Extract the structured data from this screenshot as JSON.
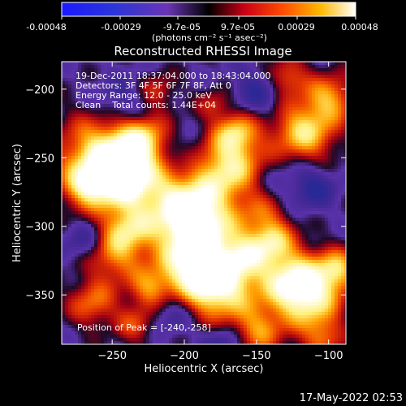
{
  "colorbar": {
    "tick_labels": [
      "-0.00048",
      "-0.00029",
      "-9.7e-05",
      "9.7e-05",
      "0.00029",
      "0.00048"
    ],
    "tick_values": [
      -0.00048,
      -0.00029,
      -9.7e-05,
      9.7e-05,
      0.00029,
      0.00048
    ],
    "range": [
      -0.00048,
      0.00048
    ],
    "units_label": "(photons cm⁻² s⁻¹ asec⁻²)"
  },
  "chart_data": {
    "type": "heatmap",
    "title": "Reconstructed RHESSI Image",
    "xlabel": "Heliocentric X (arcsec)",
    "ylabel": "Heliocentric Y (arcsec)",
    "xlim": [
      -285,
      -88
    ],
    "ylim": [
      -386,
      -180
    ],
    "x_ticks": [
      -250,
      -200,
      -150,
      -100
    ],
    "y_ticks": [
      -200,
      -250,
      -300,
      -350
    ],
    "x_tick_labels": [
      "−250",
      "−200",
      "−150",
      "−100"
    ],
    "y_tick_labels": [
      "−200",
      "−250",
      "−300",
      "−350"
    ],
    "colormap": "hessi-rainbow (blue-purple-red-orange-yellow-white)",
    "annotations": [
      "19-Dec-2011 18:37:04.000 to 18:43:04.000",
      "Detectors: 3F 4F 5F 6F 7F 8F, Att 0",
      "Energy Range: 12.0 - 25.0 keV",
      "Clean    Total counts: 1.44E+04"
    ],
    "peak_label": "Position of Peak = [-240,-258]",
    "peak_position": [
      -240,
      -258
    ]
  },
  "timestamp": "17-May-2022 02:53",
  "colors": {
    "background": "#000000",
    "axes": "#ffffff"
  }
}
